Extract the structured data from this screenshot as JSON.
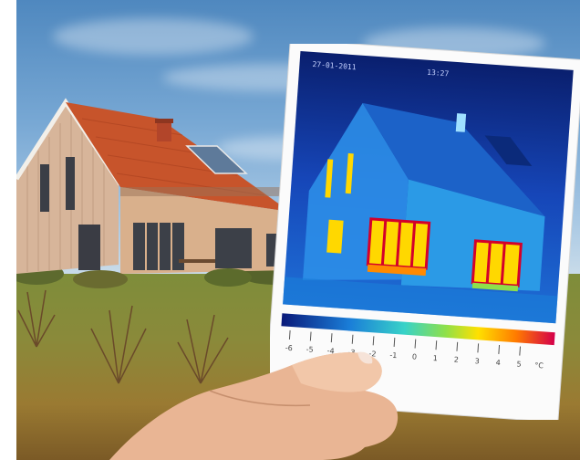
{
  "photo": {
    "thermal_card": {
      "date_stamp": "27-01-2011",
      "time_stamp": "13:27",
      "scale_ticks": [
        "-6",
        "-5",
        "-4",
        "-3",
        "-2",
        "-1",
        "0",
        "1",
        "2",
        "3",
        "4",
        "5",
        "°C"
      ]
    }
  },
  "colors": {
    "sky": "#6a9fd0",
    "roof": "#c7542b",
    "wall": "#d9b08c",
    "thermal_cold": "#0a2a8a",
    "thermal_warm": "#ffd800",
    "thermal_hot": "#d4002a",
    "grass": "#7e8d3a"
  }
}
